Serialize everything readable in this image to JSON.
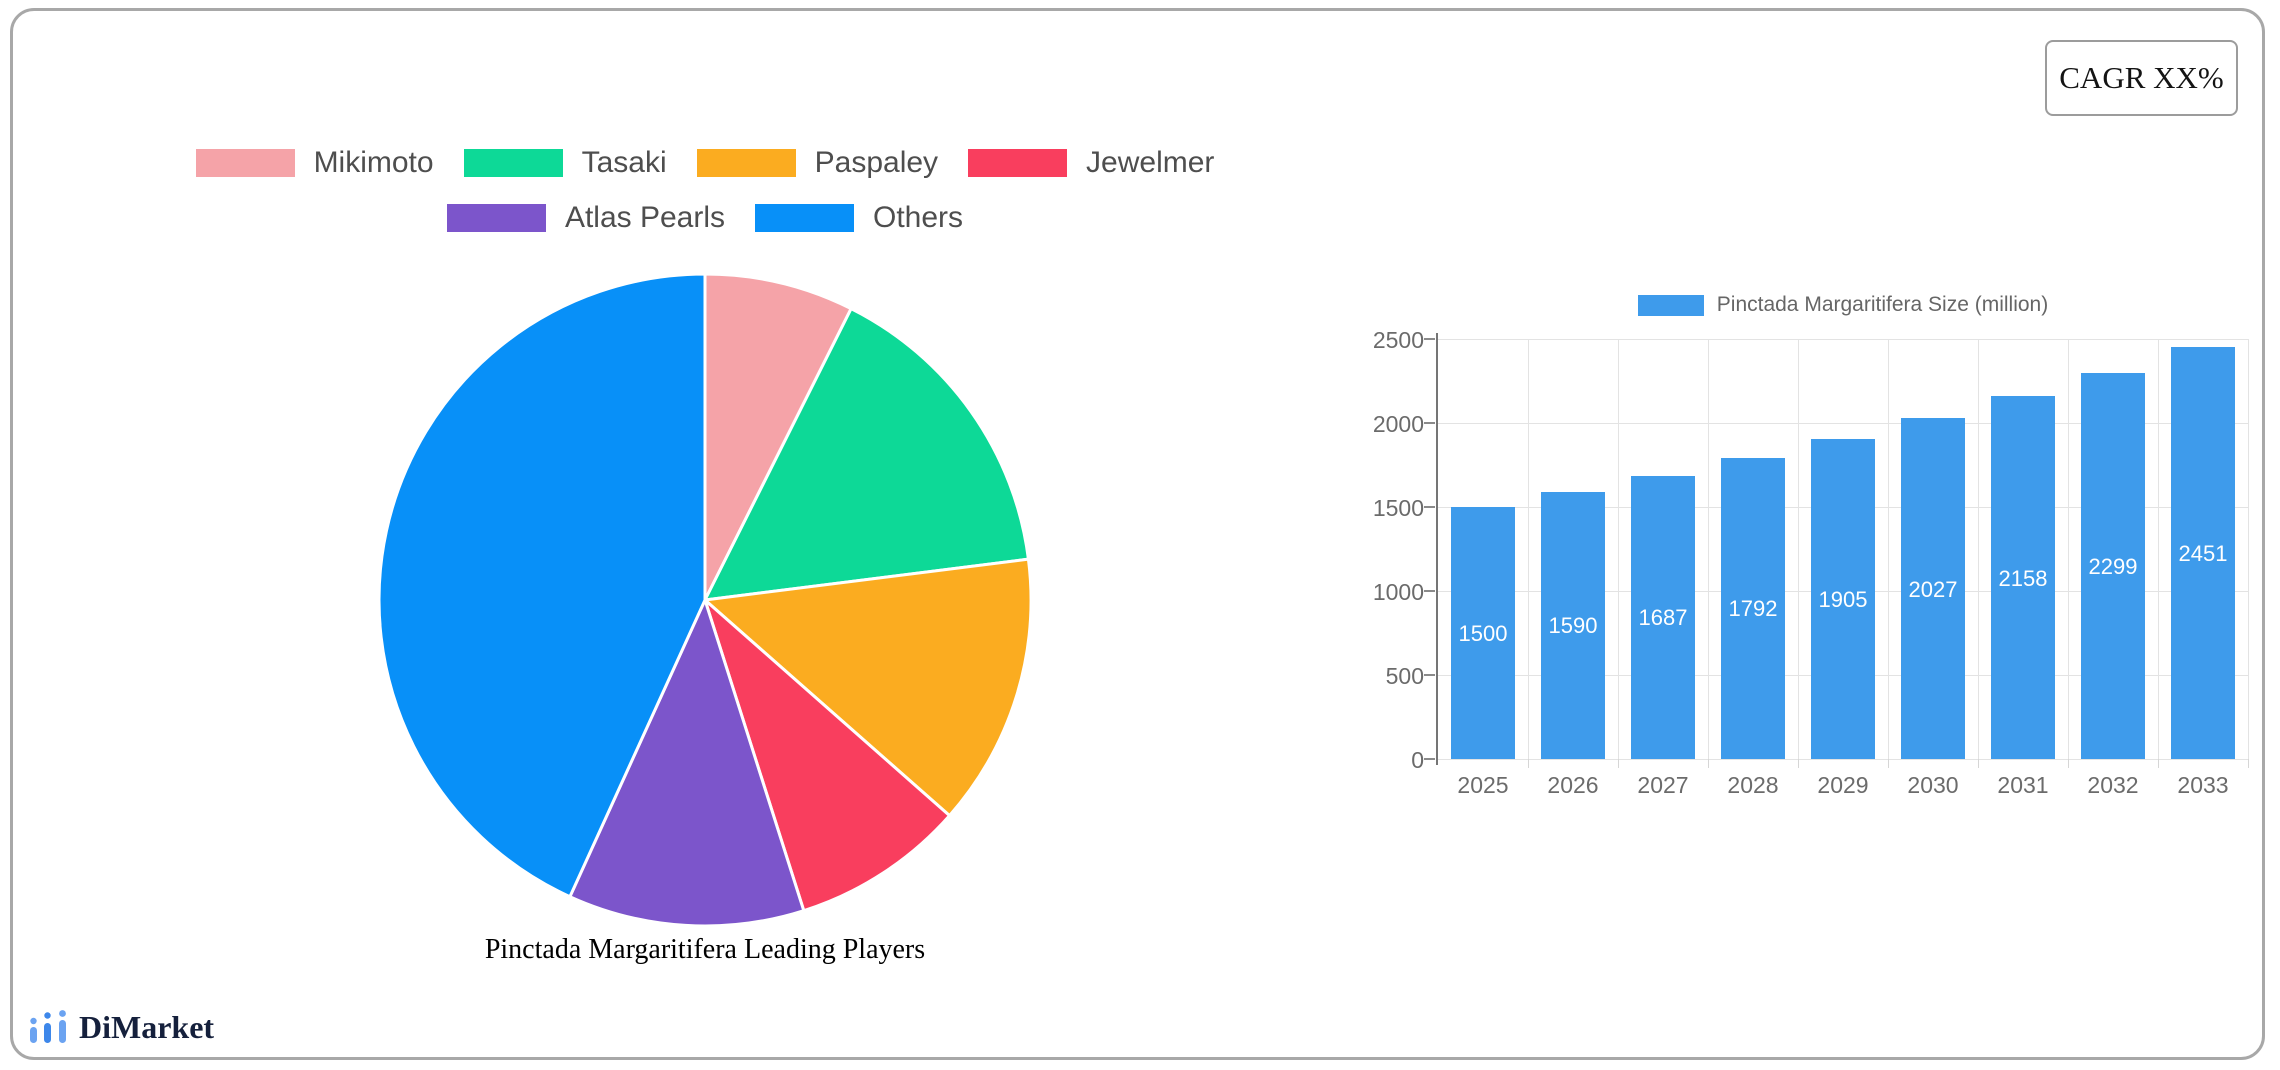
{
  "cagr_label": "CAGR XX%",
  "logo": {
    "text": "DiMarket",
    "icon_color_outer": "#6ba3f1",
    "icon_color_inner": "#3d87ea"
  },
  "frame_border_color": "#a8a8a8",
  "chart_data": [
    {
      "type": "pie",
      "title": "Pinctada Margaritifera Leading Players",
      "labels": [
        "Mikimoto",
        "Tasaki",
        "Paspaley",
        "Jewelmer",
        "Atlas Pearls",
        "Others"
      ],
      "values": [
        7.4,
        15.6,
        13.5,
        8.6,
        11.7,
        43.2
      ],
      "values_are": "estimated percent share (slices unlabeled in image)",
      "colors": [
        "#F5A3A8",
        "#0DD997",
        "#FBAC20",
        "#F93E5E",
        "#7C55CB",
        "#0890F8"
      ],
      "slice_border_color": "#FFFFFF",
      "start": "12-o'clock",
      "direction": "clockwise",
      "legend_position": "top",
      "legend_rows": [
        4,
        2
      ]
    },
    {
      "type": "bar",
      "legend_label": "Pinctada Margaritifera Size (million)",
      "categories": [
        "2025",
        "2026",
        "2027",
        "2028",
        "2029",
        "2030",
        "2031",
        "2032",
        "2033"
      ],
      "values": [
        1500,
        1590,
        1687,
        1792,
        1905,
        2027,
        2158,
        2299,
        2451
      ],
      "bar_color": "#3E9BEB",
      "value_label_color": "#FFFFFF",
      "value_label_position": "inside bar, vertically centered",
      "ylim": [
        0,
        2500
      ],
      "yticks": [
        0,
        500,
        1000,
        1500,
        2000,
        2500
      ],
      "grid": true,
      "legend_position": "top"
    }
  ]
}
